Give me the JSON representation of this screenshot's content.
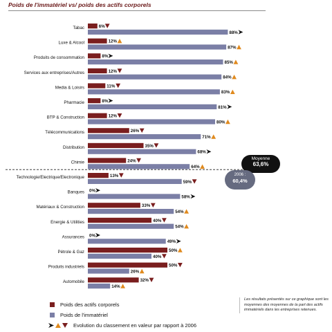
{
  "title": "Poids de l'immatériel vs/ poids des actifs corporels",
  "colors": {
    "corporels": "#7a1e1e",
    "immateriel": "#7b7fa6",
    "up": "#e08a1e",
    "down": "#7a1e1e",
    "flat": "#111111"
  },
  "chart_data": {
    "type": "bar",
    "orientation": "horizontal",
    "xlim": [
      0,
      100
    ],
    "categories": [
      "Tabac",
      "Luxe & Alcool",
      "Produits de consommation",
      "Services aux entreprises/Autres",
      "Media & Loisirs",
      "Pharmacie",
      "BTP & Construction",
      "Télécommunications",
      "Distribution",
      "Chimie",
      "Technologie/Electrique/Electronique",
      "Banques",
      "Matériaux & Construction",
      "Energie & Utilities",
      "Assurances",
      "Pétrole & Gaz",
      "Produits industriels",
      "Automobile"
    ],
    "series": [
      {
        "name": "Poids des actifs corporels",
        "values": [
          6,
          12,
          8,
          12,
          11,
          8,
          12,
          26,
          35,
          24,
          13,
          0,
          33,
          40,
          0,
          50,
          50,
          32
        ],
        "value_labels": [
          "6%",
          "12%",
          "8%",
          "12%",
          "11%",
          "8%",
          "12%",
          "26%",
          "35%",
          "24%",
          "13%",
          "0%",
          "33%",
          "40%",
          "0%",
          "50%",
          "50%",
          "32%"
        ],
        "trend": [
          "down",
          "up",
          "flat",
          "down",
          "down",
          "flat",
          "down",
          "down",
          "down",
          "down",
          "down",
          "flat",
          "down",
          "down",
          "flat",
          "up",
          "down",
          "down"
        ]
      },
      {
        "name": "Poids de l'immatériel",
        "values": [
          88,
          87,
          85,
          84,
          83,
          81,
          80,
          71,
          68,
          64,
          59,
          58,
          54,
          54,
          49,
          40,
          26,
          14
        ],
        "value_labels": [
          "88%",
          "87%",
          "85%",
          "84%",
          "83%",
          "81%",
          "80%",
          "71%",
          "68%",
          "64%",
          "59%",
          "58%",
          "54%",
          "54%",
          "49%",
          "40%",
          "26%",
          "14%"
        ],
        "trend": [
          "flat",
          "up",
          "up",
          "up",
          "up",
          "flat",
          "up",
          "up",
          "flat",
          "up",
          "down",
          "flat",
          "up",
          "up",
          "flat",
          "down",
          "up",
          "up"
        ]
      }
    ],
    "reference_line": {
      "label": "Moyenne",
      "value": 63.6,
      "value_label": "63,6%"
    },
    "previous_year": {
      "label": "2006 :",
      "value_label": "60,4%"
    }
  },
  "legend": {
    "corporels": "Poids des actifs corporels",
    "immateriel": "Poids de l'immatériel",
    "trend": "Evolution du classement en valeur par rapport à 2006"
  },
  "note": "Les résultats présentés sur ce graphique sont les moyennes des moyennes de la part des actifs immatériels dans les entreprises retenues."
}
